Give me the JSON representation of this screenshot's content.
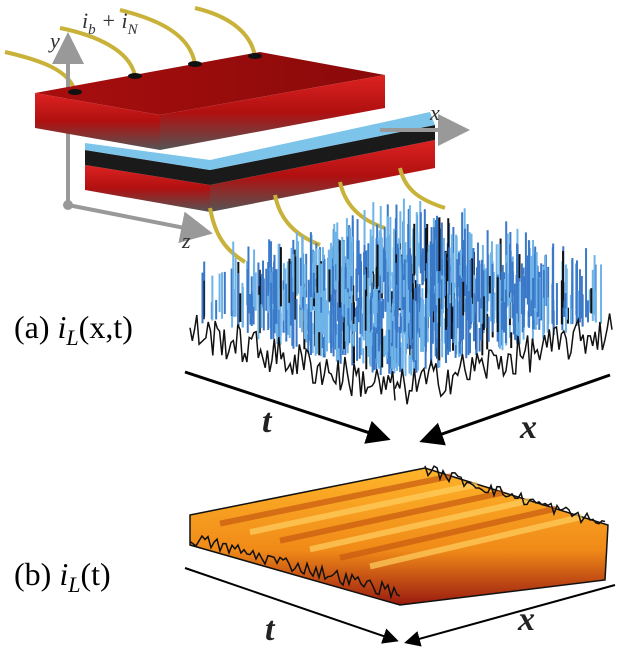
{
  "device": {
    "current_label": {
      "i1": "i",
      "sub1": "b",
      "plus": " + i",
      "sub2": "N"
    },
    "axes": {
      "y": "y",
      "x": "x",
      "z": "z"
    }
  },
  "panel_a": {
    "tag": "(a) ",
    "var": "i",
    "sub": "L",
    "args": "(x,t)",
    "t_axis": "t",
    "x_axis": "x"
  },
  "panel_b": {
    "tag": "(b) ",
    "var": "i",
    "sub": "L",
    "args": "(t)",
    "t_axis": "t",
    "x_axis": "x"
  }
}
